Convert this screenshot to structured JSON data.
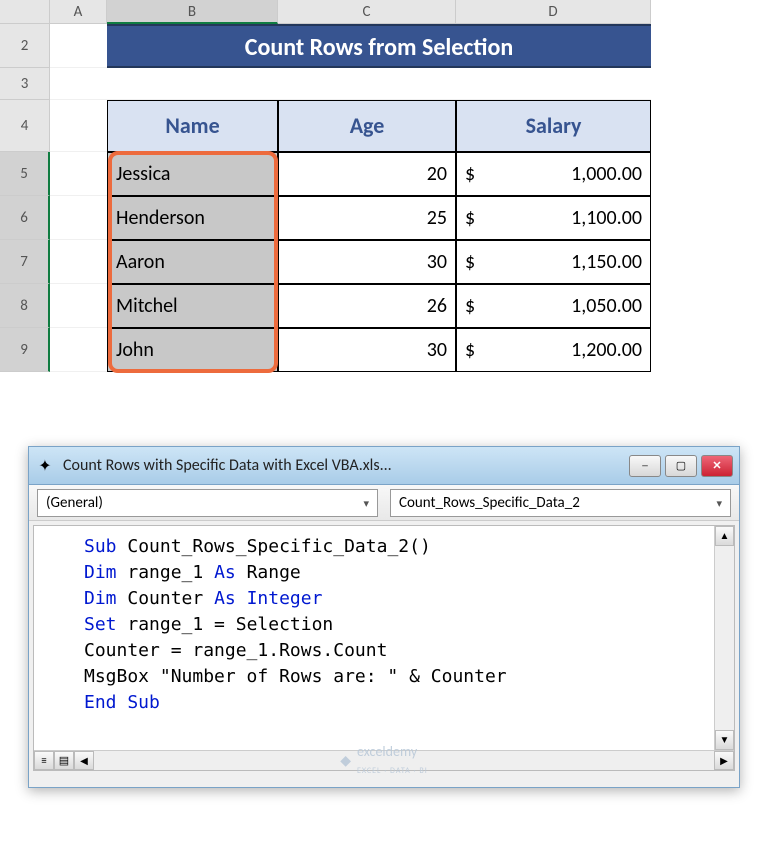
{
  "columns": [
    "A",
    "B",
    "C",
    "D"
  ],
  "rows_visible": [
    "2",
    "3",
    "4",
    "5",
    "6",
    "7",
    "8",
    "9"
  ],
  "title": "Count Rows from Selection",
  "headers": {
    "name": "Name",
    "age": "Age",
    "salary": "Salary"
  },
  "data": [
    {
      "name": "Jessica",
      "age": "20",
      "cur": "$",
      "sal": "1,000.00"
    },
    {
      "name": "Henderson",
      "age": "25",
      "cur": "$",
      "sal": "1,100.00"
    },
    {
      "name": "Aaron",
      "age": "30",
      "cur": "$",
      "sal": "1,150.00"
    },
    {
      "name": "Mitchel",
      "age": "26",
      "cur": "$",
      "sal": "1,050.00"
    },
    {
      "name": "John",
      "age": "30",
      "cur": "$",
      "sal": "1,200.00"
    }
  ],
  "selection_highlight": {
    "col": "B",
    "row_start": 5,
    "row_end": 9,
    "border_color": "#ed6b3d"
  },
  "colors": {
    "title_bg": "#375490",
    "title_fg": "#ffffff",
    "header_bg": "#d9e2f2",
    "header_fg": "#375490",
    "selected_cell_bg": "#c8c8c8",
    "grid_header_bg": "#e6e6e6",
    "grid_sel_accent": "#107c41"
  },
  "vba": {
    "window_title": "Count Rows with Specific Data with Excel VBA.xls...",
    "combo_left": "(General)",
    "combo_right": "Count_Rows_Specific_Data_2",
    "code_lines": [
      [
        {
          "t": "Sub ",
          "k": true
        },
        {
          "t": "Count_Rows_Specific_Data_2()"
        }
      ],
      [
        {
          "t": "Dim ",
          "k": true
        },
        {
          "t": "range_1 "
        },
        {
          "t": "As ",
          "k": true
        },
        {
          "t": "Range"
        }
      ],
      [
        {
          "t": "Dim ",
          "k": true
        },
        {
          "t": "Counter "
        },
        {
          "t": "As Integer",
          "k": true
        }
      ],
      [
        {
          "t": "Set ",
          "k": true
        },
        {
          "t": "range_1 = Selection"
        }
      ],
      [
        {
          "t": "Counter = range_1.Rows.Count"
        }
      ],
      [
        {
          "t": "MsgBox \"Number of Rows are: \" & Counter"
        }
      ],
      [
        {
          "t": "End Sub",
          "k": true
        }
      ]
    ],
    "win_btns": {
      "min": "─",
      "max": "▢",
      "close": "✕"
    }
  },
  "watermark": {
    "brand": "exceldemy",
    "sub": "EXCEL · DATA · BI"
  }
}
